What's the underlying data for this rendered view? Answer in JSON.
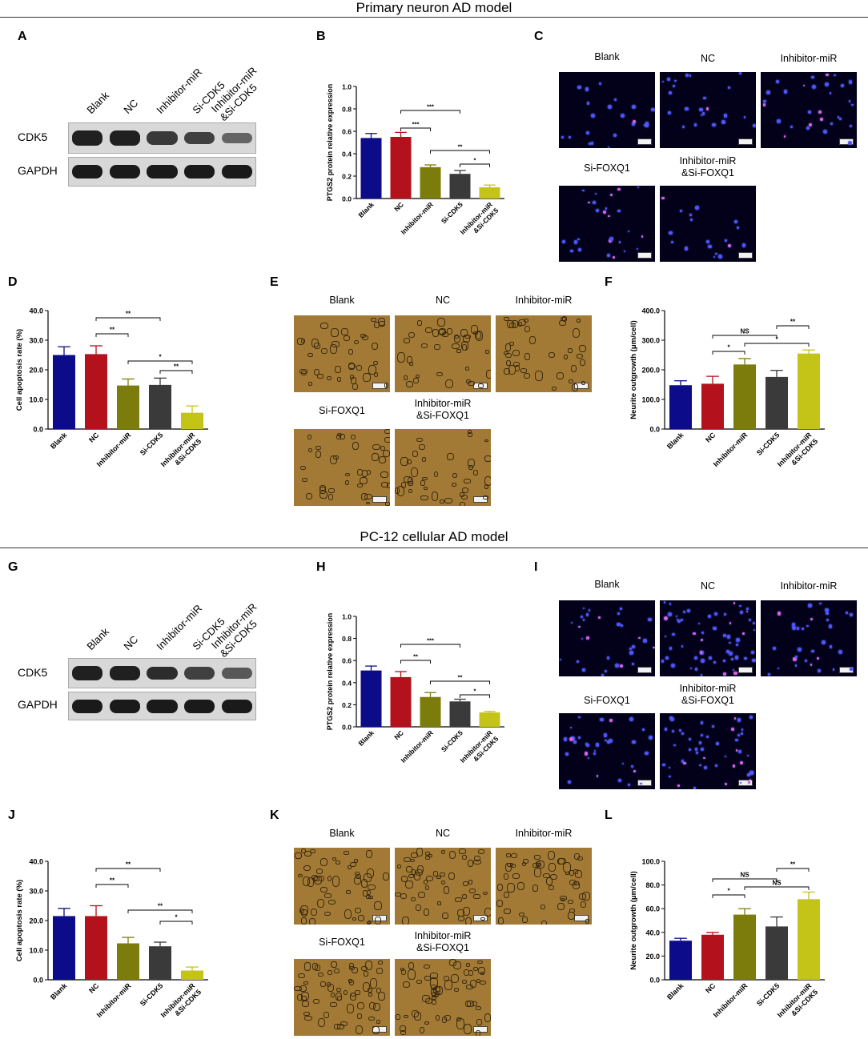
{
  "sections": [
    {
      "title": "Primary neuron AD model"
    },
    {
      "title": "PC-12 cellular AD model"
    }
  ],
  "panel_labels": [
    "A",
    "B",
    "C",
    "D",
    "E",
    "F",
    "G",
    "H",
    "I",
    "J",
    "K",
    "L"
  ],
  "western_blot": {
    "columns": [
      "Blank",
      "NC",
      "Inhibitor-miR",
      "Si-CDK5",
      "Inhibitor-miR\n&Si-CDK5"
    ],
    "rows": [
      "CDK5",
      "GAPDH"
    ],
    "cdk5_intensity_top": [
      0.95,
      0.95,
      0.75,
      0.7,
      0.4
    ],
    "cdk5_intensity_bottom": [
      0.95,
      0.95,
      0.85,
      0.7,
      0.5
    ]
  },
  "image_panels": {
    "labels": [
      "Blank",
      "NC",
      "Inhibitor-miR",
      "Si-FOXQ1",
      "Inhibitor-miR\n&Si-FOXQ1"
    ]
  },
  "colors": [
    "#0c0c8a",
    "#b3121c",
    "#7c7c0c",
    "#3a3a3a",
    "#c4c418"
  ],
  "chart_data": [
    {
      "id": "B",
      "type": "bar",
      "categories": [
        "Blank",
        "NC",
        "Inhibitor-miR",
        "Si-CDK5",
        "Inhibitor-miR\n&Si-CDK5"
      ],
      "values": [
        0.54,
        0.55,
        0.28,
        0.22,
        0.1
      ],
      "errors": [
        0.04,
        0.04,
        0.02,
        0.03,
        0.02
      ],
      "ylabel": "PTGS2 protein relative expression",
      "ylim": [
        0,
        1.0
      ],
      "yticks": [
        "0.0",
        "0.2",
        "0.4",
        "0.6",
        "0.8",
        "1.0"
      ],
      "brackets": [
        {
          "from": 1,
          "to": 2,
          "label": "***"
        },
        {
          "from": 1,
          "to": 3,
          "label": "***"
        },
        {
          "from": 2,
          "to": 4,
          "label": "**"
        },
        {
          "from": 3,
          "to": 4,
          "label": "*"
        }
      ]
    },
    {
      "id": "D",
      "type": "bar",
      "categories": [
        "Blank",
        "NC",
        "Inhibitor-miR",
        "Si-CDK5",
        "Inhibitor-miR\n&Si-CDK5"
      ],
      "values": [
        25.0,
        25.3,
        14.7,
        14.9,
        5.5
      ],
      "errors": [
        2.8,
        2.8,
        2.2,
        2.3,
        2.3
      ],
      "ylabel": "Cell apoptosis rate (%)",
      "ylim": [
        0,
        40
      ],
      "yticks": [
        "0.0",
        "10.0",
        "20.0",
        "30.0",
        "40.0"
      ],
      "brackets": [
        {
          "from": 1,
          "to": 2,
          "label": "**"
        },
        {
          "from": 1,
          "to": 3,
          "label": "**"
        },
        {
          "from": 2,
          "to": 4,
          "label": "*"
        },
        {
          "from": 3,
          "to": 4,
          "label": "**"
        }
      ]
    },
    {
      "id": "F",
      "type": "bar",
      "categories": [
        "Blank",
        "NC",
        "Inhibitor-miR",
        "Si-CDK5",
        "Inhibitor-miR\n&Si-CDK5"
      ],
      "values": [
        148,
        153,
        218,
        176,
        255
      ],
      "errors": [
        15,
        25,
        20,
        22,
        12
      ],
      "ylabel": "Neurite outgrowth (μm/cell)",
      "ylim": [
        0,
        400
      ],
      "yticks": [
        "0.0",
        "100.0",
        "200.0",
        "300.0",
        "400.0"
      ],
      "brackets": [
        {
          "from": 1,
          "to": 2,
          "label": "*"
        },
        {
          "from": 1,
          "to": 3,
          "label": "NS"
        },
        {
          "from": 2,
          "to": 4,
          "label": "*"
        },
        {
          "from": 3,
          "to": 4,
          "label": "**"
        }
      ]
    },
    {
      "id": "H",
      "type": "bar",
      "categories": [
        "Blank",
        "NC",
        "Inhibitor-miR",
        "Si-CDK5",
        "Inhibitor-miR\n&Si-CDK5"
      ],
      "values": [
        0.51,
        0.45,
        0.27,
        0.23,
        0.13
      ],
      "errors": [
        0.04,
        0.05,
        0.04,
        0.02,
        0.01
      ],
      "ylabel": "PTGS2 protein relative expression",
      "ylim": [
        0,
        1.0
      ],
      "yticks": [
        "0.0",
        "0.2",
        "0.4",
        "0.6",
        "0.8",
        "1.0"
      ],
      "brackets": [
        {
          "from": 1,
          "to": 2,
          "label": "**"
        },
        {
          "from": 1,
          "to": 3,
          "label": "***"
        },
        {
          "from": 2,
          "to": 4,
          "label": "**"
        },
        {
          "from": 3,
          "to": 4,
          "label": "*"
        }
      ]
    },
    {
      "id": "J",
      "type": "bar",
      "categories": [
        "Blank",
        "NC",
        "Inhibitor-miR",
        "Si-CDK5",
        "Inhibitor-miR\n&Si-CDK5"
      ],
      "values": [
        21.5,
        21.5,
        12.3,
        11.3,
        3.1
      ],
      "errors": [
        2.6,
        3.5,
        2.0,
        1.4,
        1.2
      ],
      "ylabel": "Cell apoptosis rate (%)",
      "ylim": [
        0,
        40
      ],
      "yticks": [
        "0.0",
        "10.0",
        "20.0",
        "30.0",
        "40.0"
      ],
      "brackets": [
        {
          "from": 1,
          "to": 2,
          "label": "**"
        },
        {
          "from": 1,
          "to": 3,
          "label": "**"
        },
        {
          "from": 2,
          "to": 4,
          "label": "**"
        },
        {
          "from": 3,
          "to": 4,
          "label": "*"
        }
      ]
    },
    {
      "id": "L",
      "type": "bar",
      "categories": [
        "Blank",
        "NC",
        "Inhibitor-miR",
        "Si-CDK5",
        "Inhibitor-miR\n&Si-CDK5"
      ],
      "values": [
        33,
        38,
        55,
        45,
        68
      ],
      "errors": [
        2,
        2,
        5,
        8,
        6
      ],
      "ylabel": "Neurite outgrowth (μm/cell)",
      "ylim": [
        0,
        100
      ],
      "yticks": [
        "0.0",
        "20.0",
        "40.0",
        "60.0",
        "80.0",
        "100.0"
      ],
      "brackets": [
        {
          "from": 1,
          "to": 2,
          "label": "*"
        },
        {
          "from": 1,
          "to": 3,
          "label": "NS"
        },
        {
          "from": 2,
          "to": 4,
          "label": "NS"
        },
        {
          "from": 3,
          "to": 4,
          "label": "**"
        }
      ]
    }
  ]
}
